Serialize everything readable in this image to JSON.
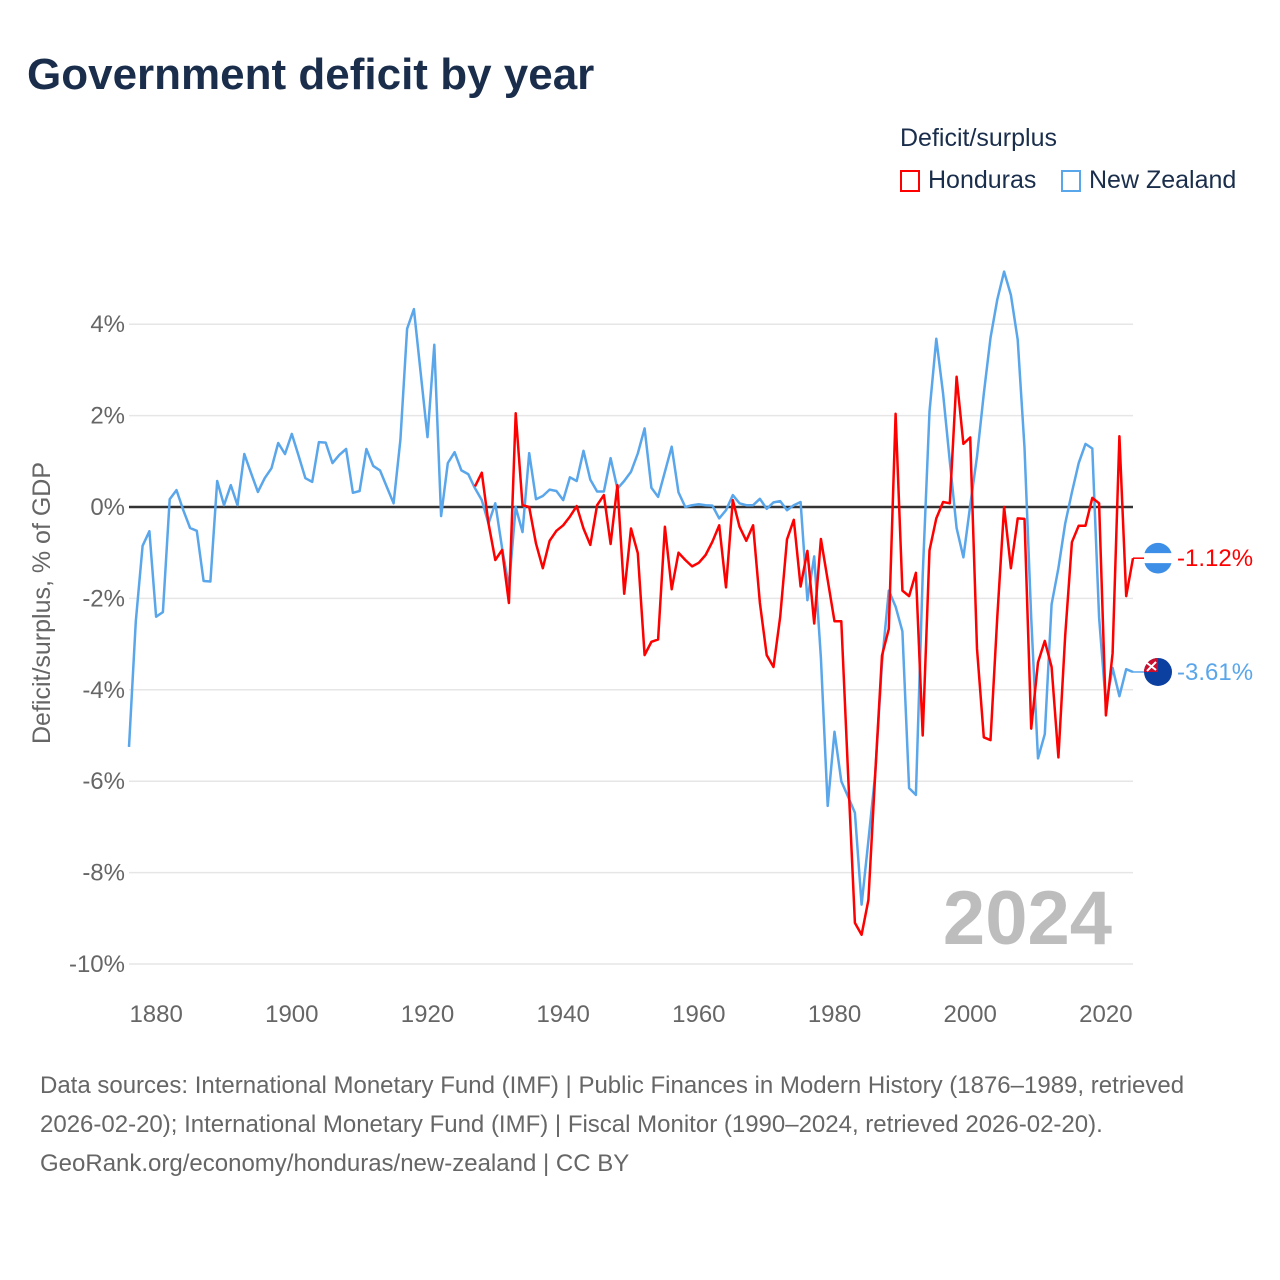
{
  "title": "Government deficit by year",
  "legend": {
    "title": "Deficit/surplus",
    "items": [
      "Honduras",
      "New Zealand"
    ]
  },
  "footer": {
    "sources": "Data sources: International Monetary Fund (IMF) | Public Finances in Modern History (1876–1989, retrieved 2026-02-20); International Monetary Fund (IMF) | Fiscal Monitor (1990–2024, retrieved 2026-02-20).",
    "credit": "GeoRank.org/economy/honduras/new-zealand | CC BY"
  },
  "chart_data": {
    "type": "line",
    "title": "Government deficit by year",
    "ylabel": "Deficit/surplus, % of GDP",
    "xlabel": "",
    "ylim": [
      -10,
      5.3
    ],
    "xlim": [
      1876,
      2024
    ],
    "yticks": [
      "4%",
      "2%",
      "0%",
      "-2%",
      "-4%",
      "-6%",
      "-8%",
      "-10%"
    ],
    "ytick_values": [
      4,
      2,
      0,
      -2,
      -4,
      -6,
      -8,
      -10
    ],
    "xticks": [
      "1880",
      "1900",
      "1920",
      "1940",
      "1960",
      "1980",
      "2000",
      "2020"
    ],
    "xtick_values": [
      1880,
      1900,
      1920,
      1940,
      1960,
      1980,
      2000,
      2020
    ],
    "year_label": "2024",
    "grid": true,
    "legend_position": "top-right",
    "series": [
      {
        "name": "Honduras",
        "color": "#ff0000",
        "start_year": 1927,
        "end_label": "-1.12%",
        "values": [
          0.45,
          0.75,
          -0.36,
          -1.16,
          -0.94,
          -2.1,
          2.05,
          0.04,
          0,
          -0.8,
          -1.34,
          -0.74,
          -0.52,
          -0.4,
          -0.21,
          0.02,
          -0.47,
          -0.83,
          0.04,
          0.26,
          -0.81,
          0.48,
          -1.9,
          -0.47,
          -1.01,
          -3.24,
          -2.95,
          -2.9,
          -0.43,
          -1.8,
          -1.0,
          -1.16,
          -1.3,
          -1.22,
          -1.05,
          -0.76,
          -0.4,
          -1.76,
          0.15,
          -0.43,
          -0.74,
          -0.4,
          -2.1,
          -3.24,
          -3.5,
          -2.4,
          -0.71,
          -0.28,
          -1.74,
          -0.96,
          -2.55,
          -0.7,
          -1.6,
          -2.5,
          -2.5,
          -5.85,
          -9.1,
          -9.36,
          -8.6,
          -5.85,
          -3.25,
          -2.67,
          2.04,
          -1.83,
          -1.95,
          -1.44,
          -5.0,
          -0.95,
          -0.25,
          0.11,
          0.08,
          2.85,
          1.38,
          1.52,
          -3.1,
          -5.04,
          -5.1,
          -2.4,
          0,
          -1.34,
          -0.25,
          -0.26,
          -4.85,
          -3.4,
          -2.93,
          -3.5,
          -5.48,
          -2.81,
          -0.77,
          -0.41,
          -0.41,
          0.2,
          0.08,
          -4.56,
          -3.2,
          1.55,
          -1.95,
          -1.12
        ]
      },
      {
        "name": "New Zealand",
        "color": "#5aa6ea",
        "start_year": 1876,
        "end_label": "-3.61%",
        "values": [
          -5.25,
          -2.5,
          -0.85,
          -0.53,
          -2.4,
          -2.3,
          0.17,
          0.37,
          -0.07,
          -0.46,
          -0.52,
          -1.62,
          -1.63,
          0.57,
          0.04,
          0.48,
          0.04,
          1.16,
          0.74,
          0.33,
          0.63,
          0.85,
          1.4,
          1.16,
          1.6,
          1.12,
          0.63,
          0.55,
          1.42,
          1.41,
          0.96,
          1.14,
          1.27,
          0.31,
          0.35,
          1.27,
          0.9,
          0.8,
          0.44,
          0.08,
          1.47,
          3.9,
          4.33,
          2.93,
          1.53,
          3.55,
          -0.2,
          0.96,
          1.2,
          0.8,
          0.72,
          0.41,
          0.15,
          -0.36,
          0.08,
          -0.9,
          -1.75,
          0,
          -0.55,
          1.18,
          0.17,
          0.24,
          0.38,
          0.35,
          0.15,
          0.65,
          0.57,
          1.23,
          0.6,
          0.34,
          0.34,
          1.07,
          0.4,
          0.57,
          0.77,
          1.17,
          1.72,
          0.42,
          0.22,
          0.77,
          1.32,
          0.32,
          0,
          0.04,
          0.06,
          0.04,
          0.03,
          -0.25,
          -0.07,
          0.26,
          0.08,
          0.04,
          0.04,
          0.18,
          -0.04,
          0.1,
          0.13,
          -0.07,
          0.04,
          0.11,
          -2.04,
          -1.08,
          -3.3,
          -6.54,
          -4.92,
          -6.0,
          -6.34,
          -6.69,
          -8.7,
          -7.3,
          -5.85,
          -3.4,
          -1.83,
          -2.18,
          -2.72,
          -6.15,
          -6.3,
          -1.5,
          2.09,
          3.68,
          2.48,
          1.0,
          -0.46,
          -1.1,
          0.03,
          1.1,
          2.48,
          3.7,
          4.54,
          5.15,
          4.64,
          3.66,
          1.3,
          -2.42,
          -5.5,
          -4.97,
          -2.13,
          -1.34,
          -0.36,
          0.32,
          0.96,
          1.38,
          1.28,
          -2.42,
          -4.33,
          -3.52,
          -4.14,
          -3.55,
          -3.61
        ]
      }
    ]
  }
}
